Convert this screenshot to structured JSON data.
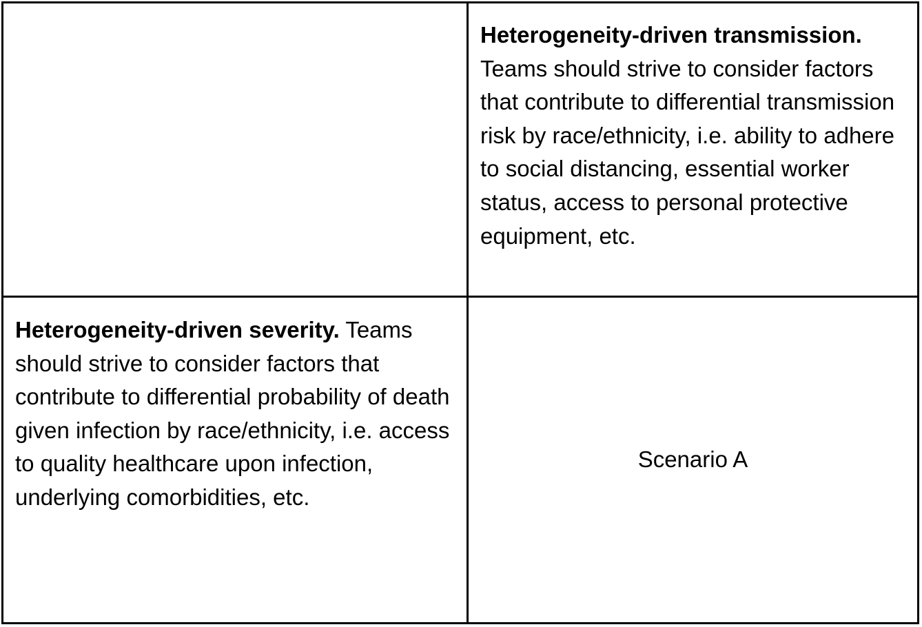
{
  "table": {
    "top_right": {
      "heading": "Heterogeneity-driven transmission.",
      "body": "Teams should strive to consider factors that contribute to differential transmission risk by race/ethnicity, i.e. ability to adhere to social distancing, essential worker status, access to personal protective equipment, etc."
    },
    "bottom_left": {
      "heading": "Heterogeneity-driven severity.",
      "body": "Teams should strive to consider factors that contribute to differential probability of death given infection by race/ethnicity, i.e. access to quality healthcare upon infection, underlying comorbidities, etc."
    },
    "bottom_right": {
      "label": "Scenario A"
    }
  }
}
